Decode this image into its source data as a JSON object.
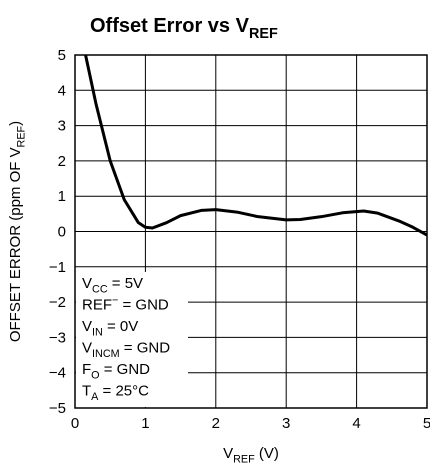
{
  "chart_data": {
    "type": "line",
    "title": [
      {
        "text": "Offset Error vs V",
        "style": "normal"
      },
      {
        "text": "REF",
        "style": "sub"
      }
    ],
    "x_label": [
      {
        "text": "V",
        "style": "normal"
      },
      {
        "text": "REF",
        "style": "sub"
      },
      {
        "text": " (V)",
        "style": "normal"
      }
    ],
    "y_label": [
      {
        "text": "OFFSET ERROR (ppm OF V",
        "style": "normal"
      },
      {
        "text": "REF",
        "style": "sub"
      },
      {
        "text": ")",
        "style": "normal"
      }
    ],
    "annotations": [
      [
        {
          "text": "V",
          "style": "normal"
        },
        {
          "text": "CC",
          "style": "sub"
        },
        {
          "text": " = 5V",
          "style": "normal"
        }
      ],
      [
        {
          "text": "REF",
          "style": "normal"
        },
        {
          "text": "−",
          "style": "sup"
        },
        {
          "text": " = GND",
          "style": "normal"
        }
      ],
      [
        {
          "text": "V",
          "style": "normal"
        },
        {
          "text": "IN",
          "style": "sub"
        },
        {
          "text": " = 0V",
          "style": "normal"
        }
      ],
      [
        {
          "text": "V",
          "style": "normal"
        },
        {
          "text": "INCM",
          "style": "sub"
        },
        {
          "text": " = GND",
          "style": "normal"
        }
      ],
      [
        {
          "text": "F",
          "style": "normal"
        },
        {
          "text": "O",
          "style": "sub"
        },
        {
          "text": " = GND",
          "style": "normal"
        }
      ],
      [
        {
          "text": "T",
          "style": "normal"
        },
        {
          "text": "A",
          "style": "sub"
        },
        {
          "text": " = 25°C",
          "style": "normal"
        }
      ]
    ],
    "x": [
      0.15,
      0.3,
      0.5,
      0.7,
      0.9,
      1.0,
      1.1,
      1.3,
      1.5,
      1.8,
      2.0,
      2.3,
      2.6,
      3.0,
      3.2,
      3.5,
      3.8,
      4.1,
      4.3,
      4.6,
      4.8,
      5.0
    ],
    "series": [
      {
        "color": "#000000",
        "values": [
          5.0,
          3.6,
          2.0,
          0.9,
          0.25,
          0.12,
          0.1,
          0.25,
          0.45,
          0.6,
          0.62,
          0.55,
          0.42,
          0.33,
          0.34,
          0.42,
          0.53,
          0.58,
          0.52,
          0.3,
          0.12,
          -0.1
        ]
      }
    ],
    "xlim": [
      0,
      5
    ],
    "ylim": [
      -5,
      5
    ],
    "xticks": [
      0,
      1,
      2,
      3,
      4,
      5
    ],
    "yticks": [
      {
        "value": -5,
        "label": "−5"
      },
      {
        "value": -4,
        "label": "−4"
      },
      {
        "value": -3,
        "label": "−3"
      },
      {
        "value": -2,
        "label": "−2"
      },
      {
        "value": -1,
        "label": "−1"
      },
      0,
      1,
      2,
      3,
      4,
      5
    ],
    "grid": true
  }
}
